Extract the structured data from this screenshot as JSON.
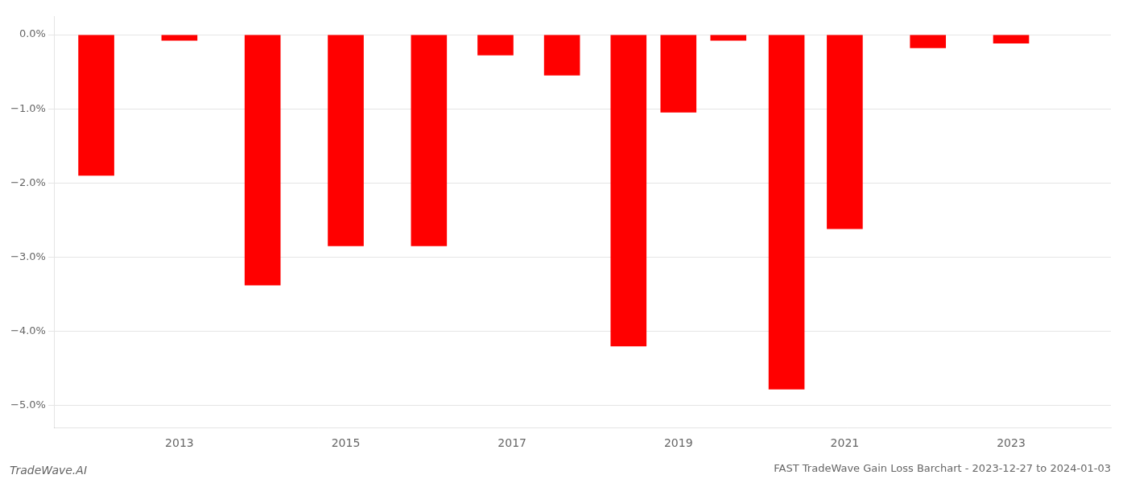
{
  "chart_data": {
    "type": "bar",
    "title": "FAST TradeWave Gain Loss Barchart - 2023-12-27 to 2024-01-03",
    "annotations": [
      "TradeWave.AI"
    ],
    "x": [
      2012,
      2013,
      2014,
      2015,
      2016,
      2016.8,
      2017.6,
      2018.4,
      2019.0,
      2019.6,
      2020.3,
      2021,
      2022,
      2023
    ],
    "values": [
      -1.9,
      -0.08,
      -3.38,
      -2.85,
      -2.85,
      -0.28,
      -0.55,
      -4.2,
      -1.05,
      -0.08,
      -4.78,
      -2.62,
      -0.18,
      -0.12
    ],
    "color": "#ff0000",
    "xlim": [
      2011.5,
      2024.2
    ],
    "xticks": [
      2013,
      2015,
      2017,
      2019,
      2021,
      2023
    ],
    "ylim": [
      -5.3,
      0.25
    ],
    "yticks": [
      {
        "value": 0.0,
        "label": "0.0%"
      },
      {
        "value": -1.0,
        "label": "−1.0%"
      },
      {
        "value": -2.0,
        "label": "−2.0%"
      },
      {
        "value": -3.0,
        "label": "−3.0%"
      },
      {
        "value": -4.0,
        "label": "−4.0%"
      },
      {
        "value": -5.0,
        "label": "−5.0%"
      }
    ],
    "grid": "y"
  }
}
